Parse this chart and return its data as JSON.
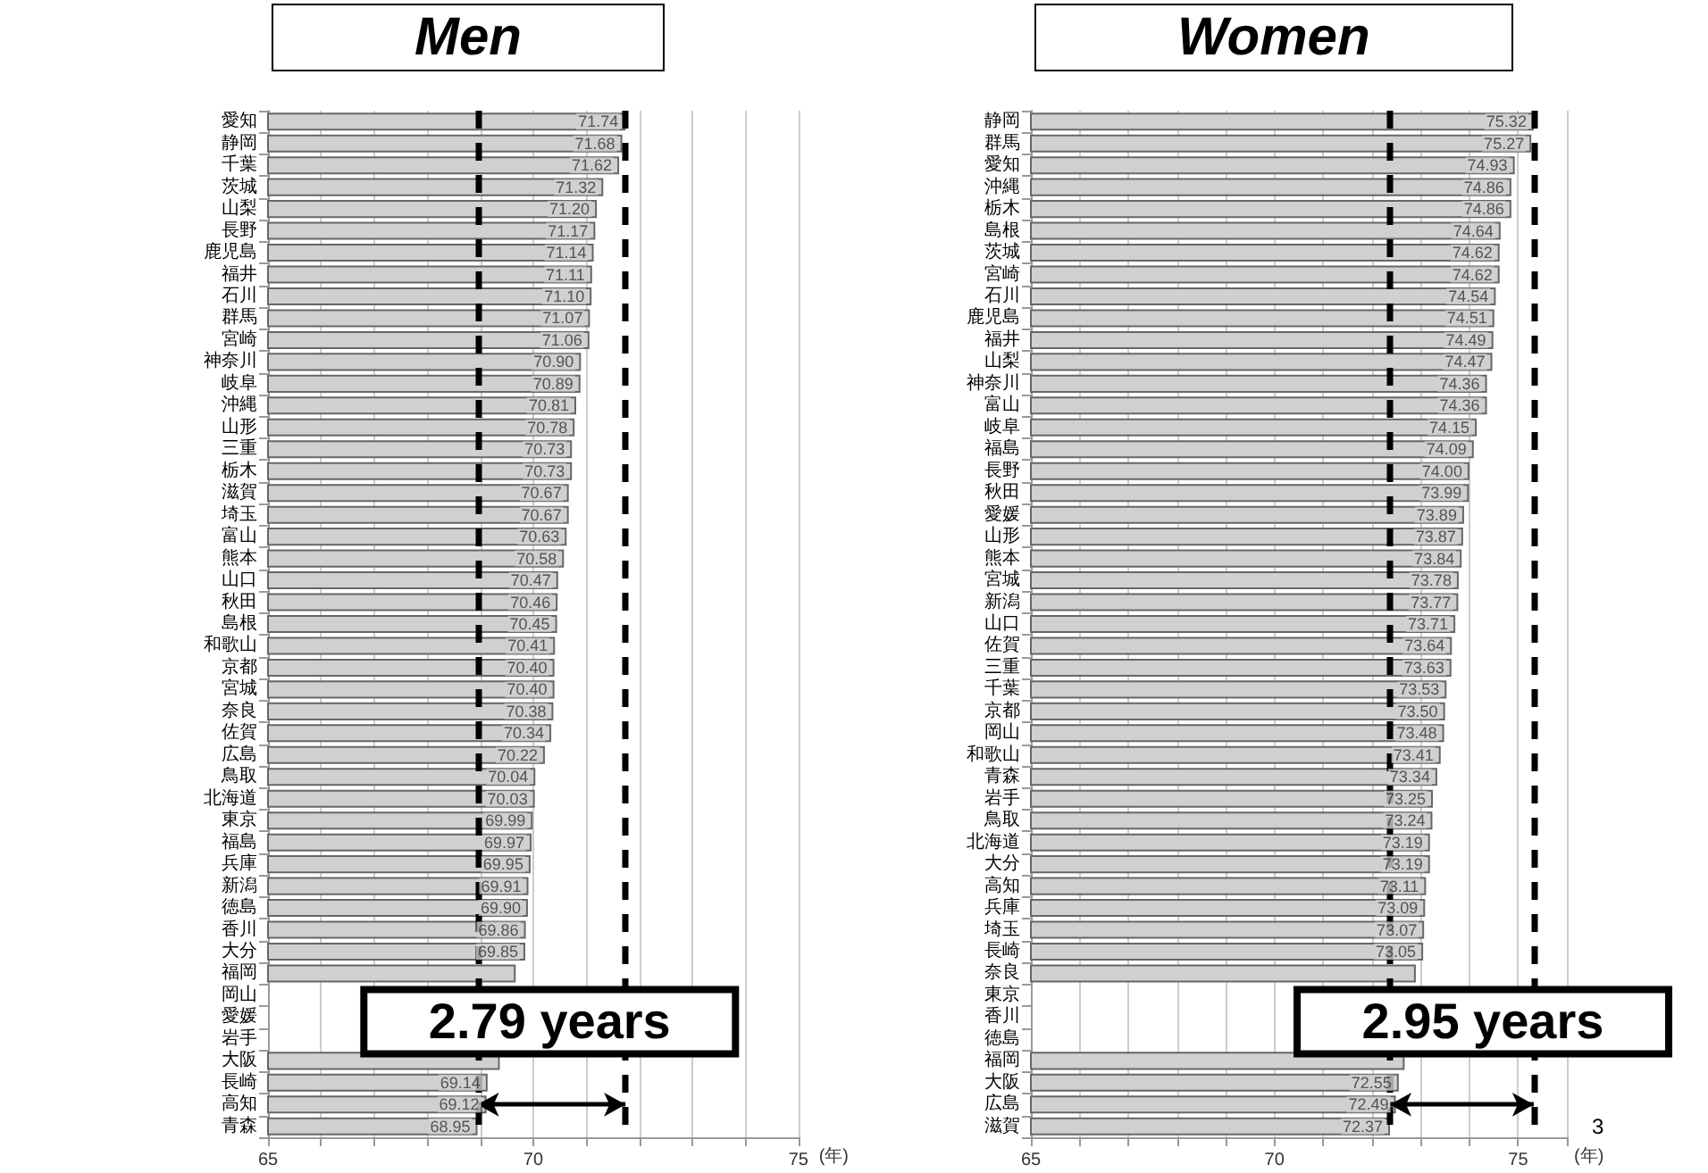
{
  "chart_data": [
    {
      "type": "bar",
      "orientation": "horizontal",
      "title": "Men",
      "xlabel": "(年)",
      "categories": [
        "愛知",
        "静岡",
        "千葉",
        "茨城",
        "山梨",
        "長野",
        "鹿児島",
        "福井",
        "石川",
        "群馬",
        "宮崎",
        "神奈川",
        "岐阜",
        "沖縄",
        "山形",
        "三重",
        "栃木",
        "滋賀",
        "埼玉",
        "富山",
        "熊本",
        "山口",
        "秋田",
        "島根",
        "和歌山",
        "京都",
        "宮城",
        "奈良",
        "佐賀",
        "広島",
        "鳥取",
        "北海道",
        "東京",
        "福島",
        "兵庫",
        "新潟",
        "徳島",
        "香川",
        "大分",
        "福岡",
        "岡山",
        "愛媛",
        "岩手",
        "大阪",
        "長崎",
        "高知",
        "青森"
      ],
      "values": [
        71.74,
        71.68,
        71.62,
        71.32,
        71.2,
        71.17,
        71.14,
        71.11,
        71.1,
        71.07,
        71.06,
        70.9,
        70.89,
        70.81,
        70.78,
        70.73,
        70.73,
        70.67,
        70.67,
        70.63,
        70.58,
        70.47,
        70.46,
        70.45,
        70.41,
        70.4,
        70.4,
        70.38,
        70.34,
        70.22,
        70.04,
        70.03,
        69.99,
        69.97,
        69.95,
        69.91,
        69.9,
        69.86,
        69.85,
        69.67,
        null,
        null,
        null,
        69.37,
        69.14,
        69.12,
        68.95
      ],
      "value_labels": [
        "71.74",
        "71.68",
        "71.62",
        "71.32",
        "71.20",
        "71.17",
        "71.14",
        "71.11",
        "71.10",
        "71.07",
        "71.06",
        "70.90",
        "70.89",
        "70.81",
        "70.78",
        "70.73",
        "70.73",
        "70.67",
        "70.67",
        "70.63",
        "70.58",
        "70.47",
        "70.46",
        "70.45",
        "70.41",
        "70.40",
        "70.40",
        "70.38",
        "70.34",
        "70.22",
        "70.04",
        "70.03",
        "69.99",
        "69.97",
        "69.95",
        "69.91",
        "69.90",
        "69.86",
        "69.85",
        null,
        null,
        null,
        null,
        null,
        "69.14",
        "69.12",
        "68.95"
      ],
      "color": "#d0d0d0",
      "xlim": [
        65,
        75
      ],
      "xticks": [
        65,
        {
          "value": 66,
          "label": null
        },
        {
          "value": 67,
          "label": null
        },
        {
          "value": 68,
          "label": null
        },
        {
          "value": 69,
          "label": null
        },
        70,
        {
          "value": 71,
          "label": null
        },
        {
          "value": 72,
          "label": null
        },
        {
          "value": 73,
          "label": null
        },
        {
          "value": 74,
          "label": null
        },
        75
      ],
      "grid": "x",
      "ref_lines": [
        {
          "axis": "x",
          "value": 68.95,
          "label": null,
          "color": "#000000",
          "line_style": "dashed"
        },
        {
          "axis": "x",
          "value": 71.74,
          "label": null,
          "color": "#000000",
          "line_style": "dashed"
        }
      ],
      "annotations": [
        "2.79 years"
      ]
    },
    {
      "type": "bar",
      "orientation": "horizontal",
      "title": "Women",
      "xlabel": "(年)",
      "categories": [
        "静岡",
        "群馬",
        "愛知",
        "沖縄",
        "栃木",
        "島根",
        "茨城",
        "宮崎",
        "石川",
        "鹿児島",
        "福井",
        "山梨",
        "神奈川",
        "富山",
        "岐阜",
        "福島",
        "長野",
        "秋田",
        "愛媛",
        "山形",
        "熊本",
        "宮城",
        "新潟",
        "山口",
        "佐賀",
        "三重",
        "千葉",
        "京都",
        "岡山",
        "和歌山",
        "青森",
        "岩手",
        "鳥取",
        "北海道",
        "大分",
        "高知",
        "兵庫",
        "埼玉",
        "長崎",
        "奈良",
        "東京",
        "香川",
        "徳島",
        "福岡",
        "大阪",
        "広島",
        "滋賀"
      ],
      "values": [
        75.32,
        75.27,
        74.93,
        74.86,
        74.86,
        74.64,
        74.62,
        74.62,
        74.54,
        74.51,
        74.49,
        74.47,
        74.36,
        74.36,
        74.15,
        74.09,
        74.0,
        73.99,
        73.89,
        73.87,
        73.84,
        73.78,
        73.77,
        73.71,
        73.64,
        73.63,
        73.53,
        73.5,
        73.48,
        73.41,
        73.34,
        73.25,
        73.24,
        73.19,
        73.19,
        73.11,
        73.09,
        73.07,
        73.05,
        72.9,
        null,
        null,
        null,
        72.67,
        72.55,
        72.49,
        72.37
      ],
      "value_labels": [
        "75.32",
        "75.27",
        "74.93",
        "74.86",
        "74.86",
        "74.64",
        "74.62",
        "74.62",
        "74.54",
        "74.51",
        "74.49",
        "74.47",
        "74.36",
        "74.36",
        "74.15",
        "74.09",
        "74.00",
        "73.99",
        "73.89",
        "73.87",
        "73.84",
        "73.78",
        "73.77",
        "73.71",
        "73.64",
        "73.63",
        "73.53",
        "73.50",
        "73.48",
        "73.41",
        "73.34",
        "73.25",
        "73.24",
        "73.19",
        "73.19",
        "73.11",
        "73.09",
        "73.07",
        "73.05",
        null,
        null,
        null,
        null,
        null,
        "72.55",
        "72.49",
        "72.37"
      ],
      "color": "#d0d0d0",
      "xlim": [
        65,
        76
      ],
      "xticks": [
        65,
        {
          "value": 66,
          "label": null
        },
        {
          "value": 67,
          "label": null
        },
        {
          "value": 68,
          "label": null
        },
        {
          "value": 69,
          "label": null
        },
        70,
        {
          "value": 71,
          "label": null
        },
        {
          "value": 72,
          "label": null
        },
        {
          "value": 73,
          "label": null
        },
        {
          "value": 74,
          "label": null
        },
        75,
        {
          "value": 76,
          "label": null
        }
      ],
      "grid": "x",
      "ref_lines": [
        {
          "axis": "x",
          "value": 72.37,
          "label": null,
          "color": "#000000",
          "line_style": "dashed"
        },
        {
          "axis": "x",
          "value": 75.32,
          "label": null,
          "color": "#000000",
          "line_style": "dashed"
        }
      ],
      "annotations": [
        "2.95 years",
        "3"
      ]
    }
  ]
}
